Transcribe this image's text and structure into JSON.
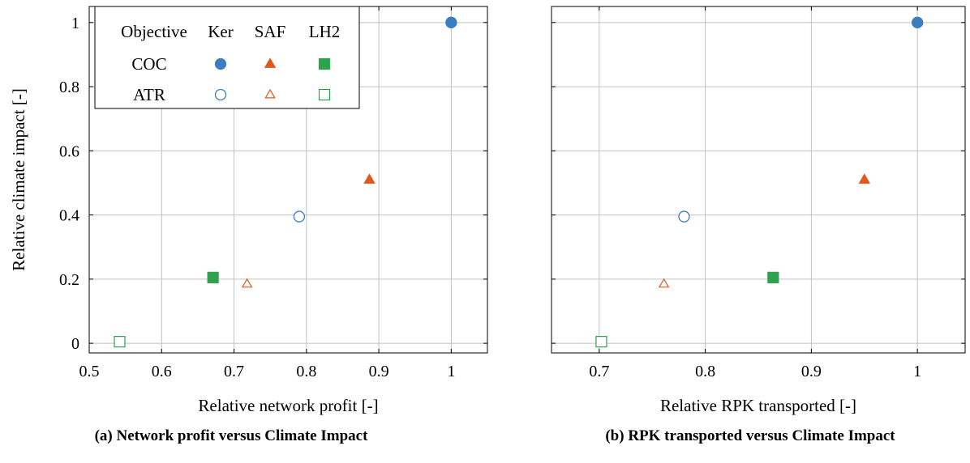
{
  "chart_data": [
    {
      "type": "scatter",
      "panel": "a",
      "caption": "(a) Network profit versus Climate Impact",
      "xlabel": "Relative network profit [-]",
      "ylabel": "Relative climate impact [-]",
      "xlim": [
        0.5,
        1.05
      ],
      "ylim": [
        -0.03,
        1.05
      ],
      "xticks": [
        0.5,
        0.6,
        0.7,
        0.8,
        0.9,
        1
      ],
      "xtick_labels": [
        "0.5",
        "0.6",
        "0.7",
        "0.8",
        "0.9",
        "1"
      ],
      "yticks": [
        0,
        0.2,
        0.4,
        0.6,
        0.8,
        1
      ],
      "ytick_labels": [
        "0",
        "0.2",
        "0.4",
        "0.6",
        "0.8",
        "1"
      ],
      "grid": true,
      "legend": {
        "placement": "top-left",
        "header": "Objective",
        "columns": [
          "Ker",
          "SAF",
          "LH2"
        ],
        "rows": [
          "COC",
          "ATR"
        ]
      },
      "points": [
        {
          "fuel": "Ker",
          "objective": "COC",
          "x": 1.0,
          "y": 1.0
        },
        {
          "fuel": "SAF",
          "objective": "COC",
          "x": 0.887,
          "y": 0.51
        },
        {
          "fuel": "LH2",
          "objective": "COC",
          "x": 0.671,
          "y": 0.205
        },
        {
          "fuel": "Ker",
          "objective": "ATR",
          "x": 0.79,
          "y": 0.395
        },
        {
          "fuel": "SAF",
          "objective": "ATR",
          "x": 0.718,
          "y": 0.185
        },
        {
          "fuel": "LH2",
          "objective": "ATR",
          "x": 0.542,
          "y": 0.005
        }
      ]
    },
    {
      "type": "scatter",
      "panel": "b",
      "caption": "(b) RPK transported versus Climate Impact",
      "xlabel": "Relative RPK transported [-]",
      "ylabel": "",
      "xlim": [
        0.655,
        1.045
      ],
      "ylim": [
        -0.03,
        1.05
      ],
      "xticks": [
        0.7,
        0.8,
        0.9,
        1
      ],
      "xtick_labels": [
        "0.7",
        "0.8",
        "0.9",
        "1"
      ],
      "yticks": [
        0,
        0.2,
        0.4,
        0.6,
        0.8,
        1
      ],
      "grid": true,
      "points": [
        {
          "fuel": "Ker",
          "objective": "COC",
          "x": 1.0,
          "y": 1.0
        },
        {
          "fuel": "SAF",
          "objective": "COC",
          "x": 0.95,
          "y": 0.51
        },
        {
          "fuel": "LH2",
          "objective": "COC",
          "x": 0.864,
          "y": 0.205
        },
        {
          "fuel": "Ker",
          "objective": "ATR",
          "x": 0.78,
          "y": 0.395
        },
        {
          "fuel": "SAF",
          "objective": "ATR",
          "x": 0.761,
          "y": 0.185
        },
        {
          "fuel": "LH2",
          "objective": "ATR",
          "x": 0.702,
          "y": 0.005
        }
      ]
    }
  ],
  "colors": {
    "Ker": "#3a7dc0",
    "SAF": "#e0581a",
    "LH2": "#2ea24f",
    "grid": "#c0c0c0",
    "axis": "#000000"
  },
  "marker_shapes": {
    "Ker": "circle",
    "SAF": "triangle",
    "LH2": "square"
  },
  "marker_fill": {
    "COC": "filled",
    "ATR": "hollow"
  }
}
